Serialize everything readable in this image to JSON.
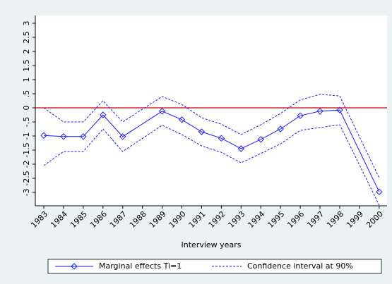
{
  "chart_data": {
    "type": "line",
    "x": [
      1983,
      1984,
      1985,
      1986,
      1987,
      1989,
      1990,
      1991,
      1992,
      1993,
      1994,
      1995,
      1996,
      1997,
      1998,
      2000
    ],
    "series": [
      {
        "name": "Marginal effects Ti=1",
        "color": "#1a1aff",
        "marker": "diamond",
        "values": [
          -0.98,
          -1.02,
          -1.02,
          -0.25,
          -1.02,
          -0.12,
          -0.42,
          -0.85,
          -1.08,
          -1.45,
          -1.12,
          -0.75,
          -0.28,
          -0.12,
          -0.08,
          -2.98
        ]
      },
      {
        "name": "Confidence interval at 90%",
        "color": "#1a1aff",
        "dash": true,
        "upper": [
          0.0,
          -0.5,
          -0.5,
          0.25,
          -0.5,
          0.4,
          0.12,
          -0.35,
          -0.58,
          -0.95,
          -0.6,
          -0.2,
          0.28,
          0.48,
          0.42,
          -2.48
        ],
        "lower": [
          -2.05,
          -1.55,
          -1.55,
          -0.75,
          -1.55,
          -0.62,
          -0.95,
          -1.35,
          -1.58,
          -1.95,
          -1.62,
          -1.28,
          -0.8,
          -0.7,
          -0.6,
          -3.45
        ]
      }
    ],
    "reference_line": 0,
    "reference_color": "#cc0000",
    "x_label": "Interview years",
    "xlim": [
      1982.57,
      2000.4
    ],
    "xticks": [
      1983,
      1984,
      1985,
      1986,
      1987,
      1988,
      1989,
      1990,
      1991,
      1992,
      1993,
      1994,
      1995,
      1996,
      1997,
      1998,
      1999,
      2000
    ],
    "ylim": [
      -3.475,
      3.275
    ],
    "yticks": [
      -3,
      -2.5,
      -2,
      -1.5,
      -1,
      {
        "value": -0.5,
        "label": "-.5"
      },
      0,
      {
        "value": 0.5,
        "label": ".5"
      },
      1,
      1.5,
      2,
      2.5,
      3
    ]
  }
}
